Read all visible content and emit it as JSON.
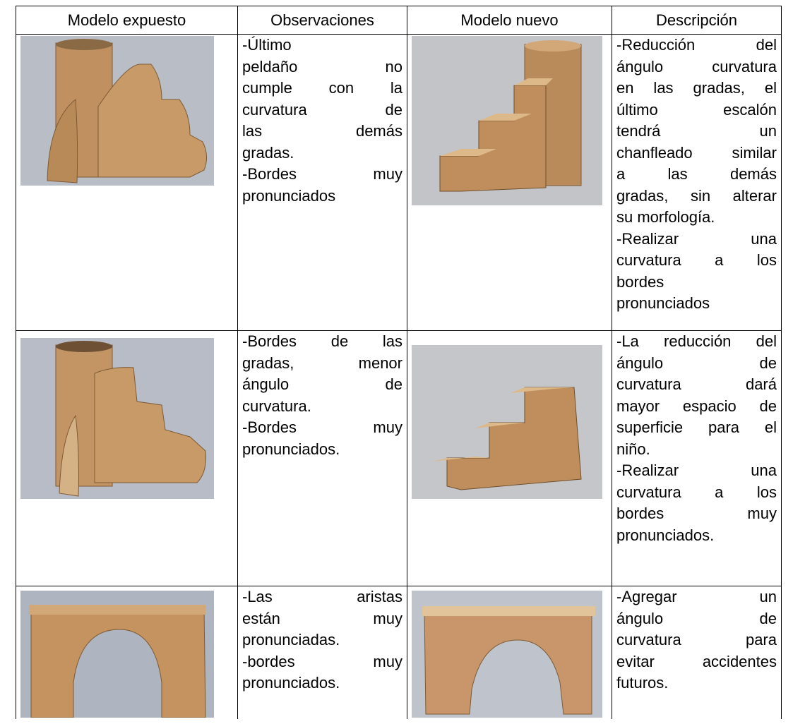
{
  "header": [
    "Modelo expuesto",
    "Observaciones",
    "Modelo nuevo",
    "Descripción"
  ],
  "rows": [
    {
      "observaciones": [
        "-Último",
        "peldaño no",
        "cumple con la",
        "curvatura de",
        "las demás",
        "gradas.",
        "-Bordes muy",
        "pronunciados"
      ],
      "descripcion": [
        "-Reducción del",
        "ángulo curvatura",
        "en las gradas, el",
        "último escalón",
        "tendrá un",
        "chanfleado similar",
        "a las demás",
        "gradas, sin alterar",
        "su morfología.",
        "-Realizar una",
        "curvatura a los",
        "bordes",
        "pronunciados"
      ]
    },
    {
      "observaciones": [
        "-Bordes de las",
        "gradas, menor",
        "ángulo de",
        "curvatura.",
        "-Bordes muy",
        "pronunciados."
      ],
      "descripcion": [
        "-La reducción del",
        "ángulo de",
        "curvatura dará",
        "mayor espacio de",
        "superficie para el",
        "niño.",
        "-Realizar una",
        "curvatura a los",
        "bordes muy",
        "pronunciados."
      ]
    },
    {
      "observaciones": [
        "-Las aristas",
        "están muy",
        "pronunciadas.",
        "-bordes muy",
        "pronunciados."
      ],
      "descripcion": [
        "-Agregar un",
        "ángulo de",
        "curvatura para",
        "evitar accidentes",
        "futuros."
      ]
    }
  ]
}
